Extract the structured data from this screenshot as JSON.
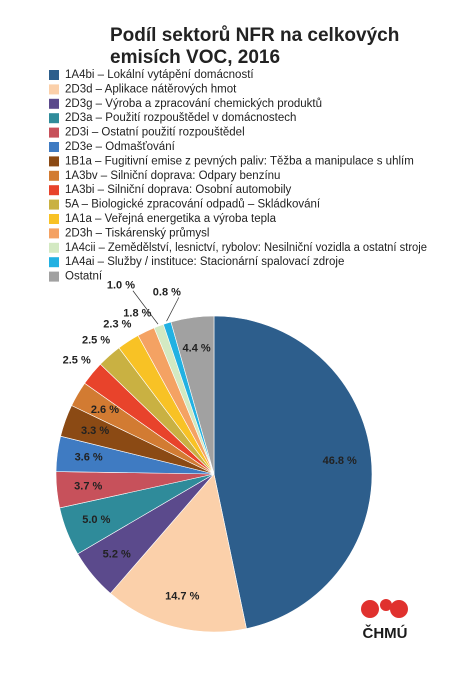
{
  "chart_data": {
    "type": "pie",
    "title": [
      "Podíl sektorů NFR na celkových",
      "emisích VOC, 2016"
    ],
    "categories": [
      "1A4bi – Lokální vytápění domácností",
      "2D3d – Aplikace nátěrových hmot",
      "2D3g – Výroba a zpracování chemických produktů",
      "2D3a – Použití rozpouštědel v domácnostech",
      "2D3i – Ostatní použití rozpouštědel",
      "2D3e – Odmašťování",
      "1B1a – Fugitivní emise z pevných paliv: Těžba a manipulace s uhlím",
      "1A3bv – Silniční doprava: Odpary benzínu",
      "1A3bi – Silniční doprava: Osobní automobily",
      "5A – Biologické zpracování odpadů – Skládkování",
      "1A1a – Veřejná energetika a výroba tepla",
      "2D3h – Tiskárenský průmysl",
      "1A4cii – Zemědělství, lesnictví, rybolov: Nesilniční vozidla a ostatní stroje",
      "1A4ai – Služby / instituce: Stacionární spalovací zdroje",
      "Ostatní"
    ],
    "values": [
      46.8,
      14.7,
      5.2,
      5.0,
      3.7,
      3.6,
      3.3,
      2.6,
      2.5,
      2.5,
      2.3,
      1.8,
      1.0,
      0.8,
      4.4
    ],
    "value_labels": [
      "46.8 %",
      "14.7 %",
      "5.2 %",
      "5.0 %",
      "3.7 %",
      "3.6 %",
      "3.3 %",
      "2.6 %",
      "2.5 %",
      "2.5 %",
      "2.3 %",
      "1.8 %",
      "1.0 %",
      "0.8 %",
      "4.4 %"
    ],
    "colors": [
      "#2d5e8c",
      "#fbd0aa",
      "#5b4a8c",
      "#2f8b9a",
      "#c7515b",
      "#3f7bc2",
      "#8b4a14",
      "#d27b32",
      "#e8432b",
      "#c9b142",
      "#f8c225",
      "#f4a263",
      "#d3e9c2",
      "#22b1e2",
      "#a1a1a1"
    ],
    "logo_text": "ČHMÚ"
  }
}
